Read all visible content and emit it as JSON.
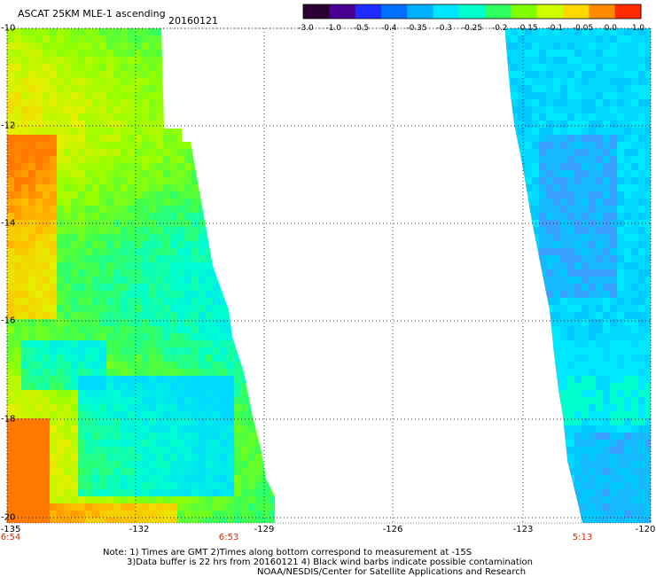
{
  "header": {
    "title": "ASCAT 25KM MLE-1 ascending",
    "date": "20160121"
  },
  "colorbar": {
    "ticks": [
      "-3.0",
      "-1.0",
      "-0.5",
      "-0.4",
      "-0.35",
      "-0.3",
      "-0.25",
      "-0.2",
      "-0.15",
      "-0.1",
      "-0.05",
      "0.0",
      "1.0"
    ],
    "colors": [
      "#2a0032",
      "#4a0090",
      "#1e2cff",
      "#0070ff",
      "#00b0ff",
      "#00e5ff",
      "#00ffcc",
      "#30ff60",
      "#80ff00",
      "#d0ff00",
      "#ffd800",
      "#ff8a00",
      "#ff2a00"
    ]
  },
  "axes": {
    "lat_labels": [
      "-10",
      "-12",
      "-14",
      "-16",
      "-18",
      "-20"
    ],
    "lon_labels": [
      "-135",
      "-132",
      "-129",
      "-126",
      "-123",
      "-120"
    ],
    "time_labels": [
      "6:54",
      "6:53",
      "5:13"
    ]
  },
  "notes": {
    "line1": "Note: 1) Times are GMT 2)Times along bottom correspond to measurement at -15S",
    "line2": "3)Data buffer is 22 hrs from 20160121 4) Black wind barbs indicate possible contamination",
    "line3": "NOAA/NESDIS/Center for Satellite Applications and Research"
  },
  "map": {
    "type": "scalar-field",
    "variable": "MLE-1",
    "lat_range": [
      -20,
      -10
    ],
    "lon_range": [
      -135,
      -120
    ],
    "swaths": [
      {
        "name": "west",
        "time": "6:53",
        "dominant_values": [
          -0.2,
          -0.15,
          -0.1,
          -0.05
        ],
        "max_value": 0.0
      },
      {
        "name": "east",
        "time": "5:13",
        "dominant_values": [
          -0.3,
          -0.25
        ],
        "min_value": -0.35
      }
    ]
  }
}
